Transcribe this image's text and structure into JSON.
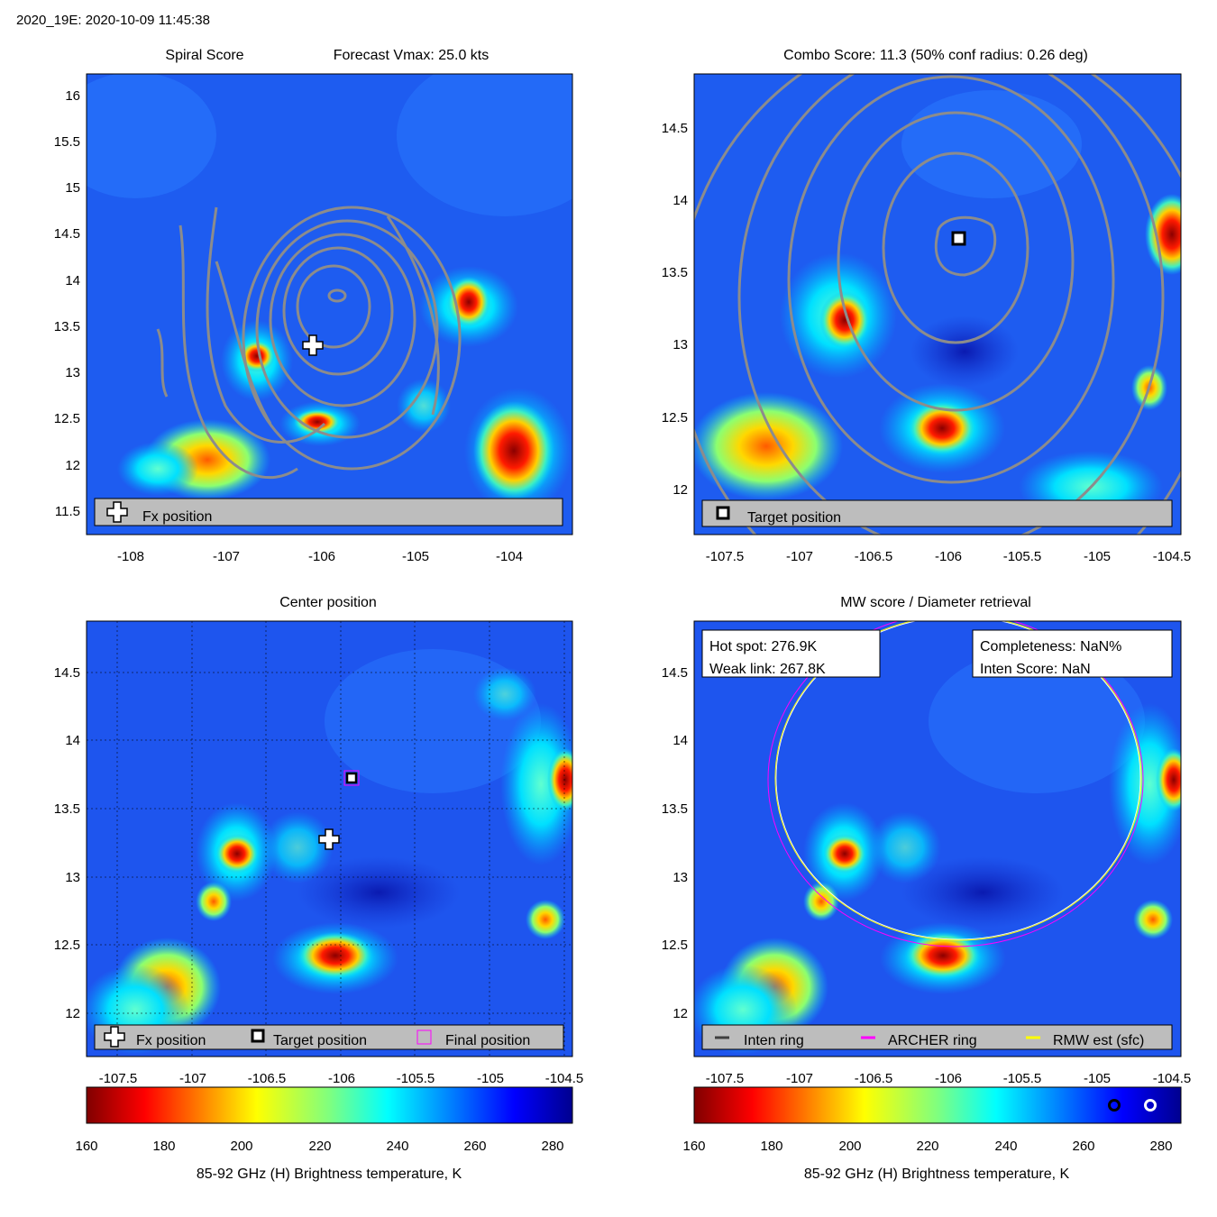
{
  "header": {
    "title": "2020_19E: 2020-10-09 11:45:38"
  },
  "colors": {
    "contour": "#8c8c8c",
    "field_base": "#1e55ee",
    "legend_bg": "#bdbdbd",
    "archer_ring": "#ff00ff",
    "rmw_ring": "#ffff00",
    "inten_ring": "#404040"
  },
  "panels": {
    "spiral": {
      "title_left": "Spiral Score",
      "title_right": "Forecast Vmax: 25.0 kts",
      "legend": [
        "Fx position"
      ]
    },
    "combo": {
      "title": "Combo Score: 11.3  (50% conf radius: 0.26 deg)",
      "legend": [
        "Target position"
      ]
    },
    "center": {
      "title": "Center position",
      "legend": [
        "Fx position",
        "Target position",
        "Final position"
      ]
    },
    "mw": {
      "title": "MW score / Diameter retrieval",
      "info_left": [
        "Hot spot: 276.9K",
        "Weak link: 267.8K"
      ],
      "info_right": [
        "Completeness: NaN%",
        "Inten Score: NaN"
      ],
      "legend": [
        "Inten ring",
        "ARCHER ring",
        "RMW est (sfc)"
      ]
    }
  },
  "colorbar": {
    "label": "85-92 GHz (H) Brightness temperature, K",
    "ticks": [
      "160",
      "180",
      "200",
      "220",
      "240",
      "260",
      "280"
    ],
    "range": [
      160,
      285
    ]
  },
  "chart_data": [
    {
      "panel": "Spiral Score",
      "type": "heatmap",
      "xlim": [
        -108.45,
        -103.3
      ],
      "ylim": [
        11.25,
        16.25
      ],
      "xticks": [
        "-108",
        "-107",
        "-106",
        "-105",
        "-104"
      ],
      "yticks": [
        "11.5",
        "12",
        "12.5",
        "13",
        "13.5",
        "14",
        "14.5",
        "15",
        "15.5",
        "16"
      ],
      "fx_position": {
        "lon": -106.0,
        "lat": 13.3
      },
      "title": "Spiral Score",
      "subtitle": "Forecast Vmax: 25.0 kts"
    },
    {
      "panel": "Combo Score",
      "type": "heatmap",
      "xlim": [
        -107.7,
        -104.45
      ],
      "ylim": [
        11.7,
        14.85
      ],
      "xticks": [
        "-107.5",
        "-107",
        "-106.5",
        "-106",
        "-105.5",
        "-105",
        "-104.5"
      ],
      "yticks": [
        "12",
        "12.5",
        "13",
        "13.5",
        "14",
        "14.5"
      ],
      "target_position": {
        "lon": -105.9,
        "lat": 13.73
      },
      "title": "Combo Score: 11.3  (50% conf radius: 0.26 deg)"
    },
    {
      "panel": "Center position",
      "type": "heatmap",
      "xlim": [
        -107.7,
        -104.45
      ],
      "ylim": [
        11.7,
        14.85
      ],
      "xticks": [
        "-107.5",
        "-107",
        "-106.5",
        "-106",
        "-105.5",
        "-105",
        "-104.5"
      ],
      "yticks": [
        "12",
        "12.5",
        "13",
        "13.5",
        "14",
        "14.5"
      ],
      "fx_position": {
        "lon": -106.08,
        "lat": 13.27
      },
      "target_position": {
        "lon": -105.92,
        "lat": 13.72
      },
      "final_position": {
        "lon": -105.92,
        "lat": 13.72
      },
      "grid": true,
      "title": "Center position"
    },
    {
      "panel": "MW score / Diameter retrieval",
      "type": "heatmap",
      "xlim": [
        -107.7,
        -104.45
      ],
      "ylim": [
        11.7,
        14.85
      ],
      "xticks": [
        "-107.5",
        "-107",
        "-106.5",
        "-106",
        "-105.5",
        "-105",
        "-104.5"
      ],
      "yticks": [
        "12",
        "12.5",
        "13",
        "13.5",
        "14",
        "14.5"
      ],
      "archer_ring": {
        "lon": -105.95,
        "lat": 13.7,
        "radius_deg": 1.25
      },
      "rmw_ring": {
        "lon": -105.92,
        "lat": 13.72,
        "radius_deg": 1.22
      },
      "title": "MW score / Diameter retrieval"
    }
  ]
}
